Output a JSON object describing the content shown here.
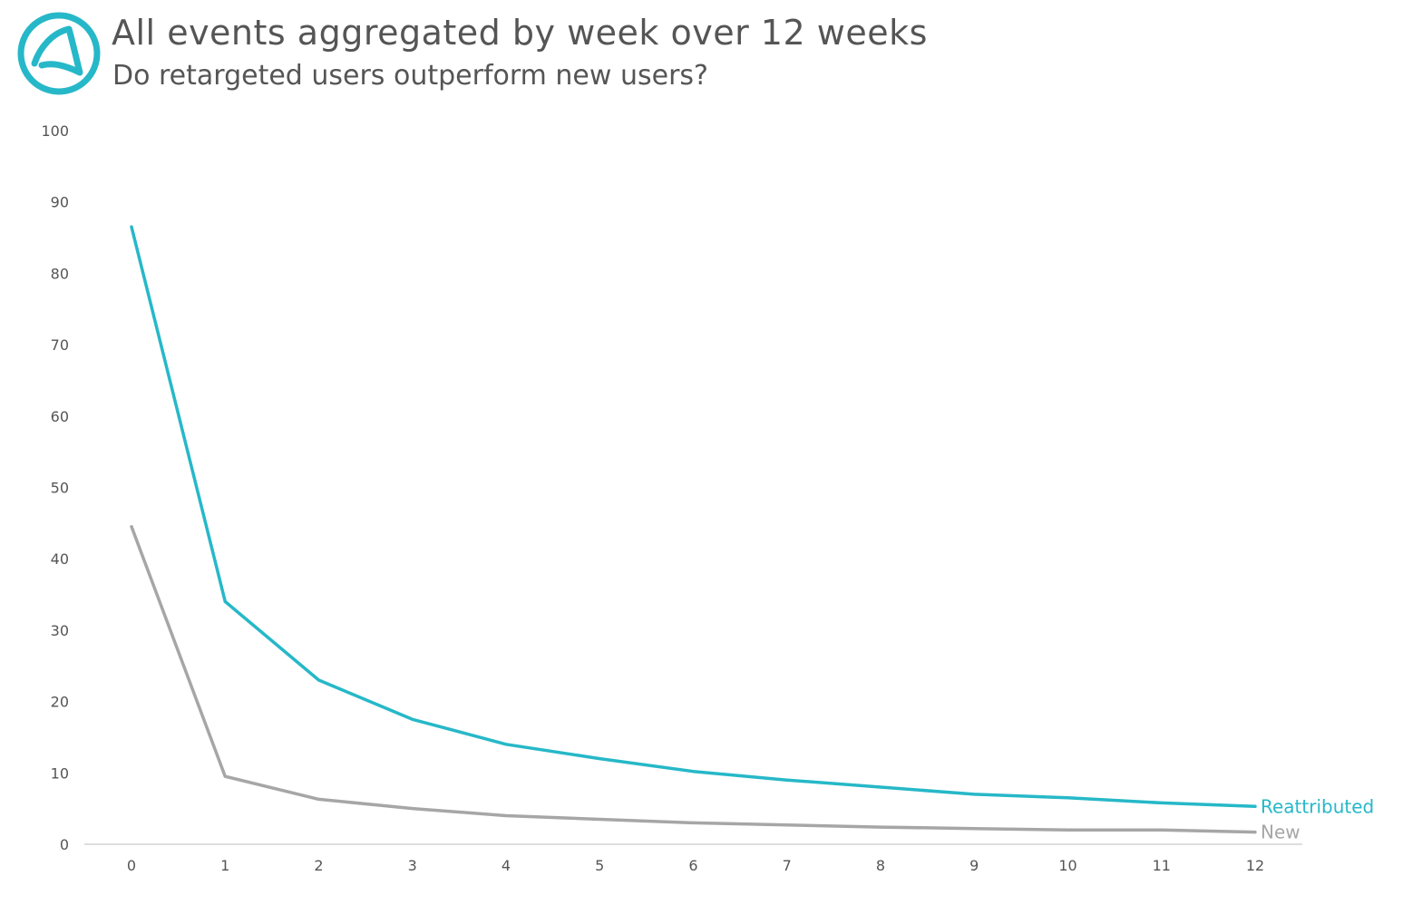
{
  "header": {
    "title": "All events aggregated by week over 12 weeks",
    "subtitle": "Do retargeted users outperform new users?"
  },
  "logo": {
    "icon": "adjust-logo-icon",
    "color": "#26b8c8"
  },
  "chart_data": {
    "type": "line",
    "title": "All events aggregated by week over 12 weeks",
    "subtitle": "Do retargeted users outperform new users?",
    "xlabel": "",
    "ylabel": "",
    "x": [
      0,
      1,
      2,
      3,
      4,
      5,
      6,
      7,
      8,
      9,
      10,
      11,
      12
    ],
    "xlim": [
      0,
      12
    ],
    "ylim": [
      0,
      100
    ],
    "yticks": [
      0,
      10,
      20,
      30,
      40,
      50,
      60,
      70,
      80,
      90,
      100
    ],
    "grid": false,
    "legend": "inline-right",
    "series": [
      {
        "name": "Reattributed",
        "color": "#26b8c8",
        "values": [
          86.5,
          34,
          23,
          17.5,
          14,
          12,
          10.2,
          9,
          8,
          7,
          6.5,
          5.8,
          5.3
        ]
      },
      {
        "name": "New",
        "color": "#a6a6a6",
        "values": [
          44.5,
          9.5,
          6.3,
          5,
          4,
          3.5,
          3,
          2.7,
          2.4,
          2.2,
          2,
          2,
          1.7
        ]
      }
    ]
  }
}
